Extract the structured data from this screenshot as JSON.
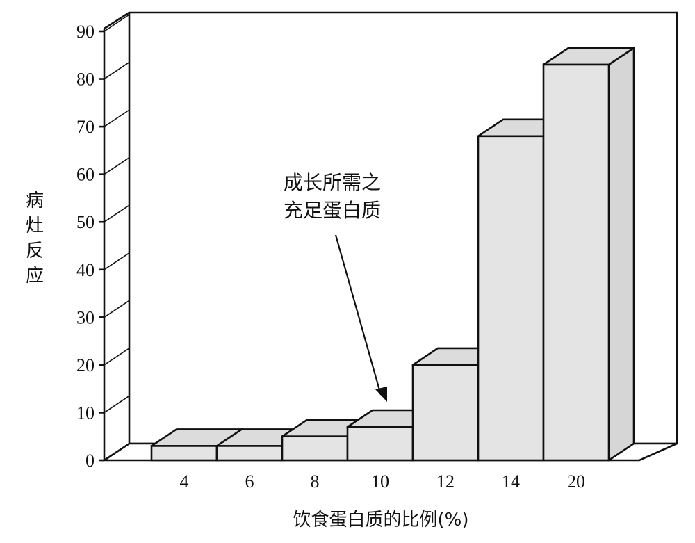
{
  "chart_data": {
    "type": "bar",
    "categories": [
      "4",
      "6",
      "8",
      "10",
      "12",
      "14",
      "20"
    ],
    "values": [
      3,
      3,
      5,
      7,
      20,
      68,
      83
    ],
    "xlabel": "饮食蛋白质的比例(%)",
    "ylabel": "病灶反应",
    "ylim": [
      0,
      90
    ],
    "yticks": [
      "0",
      "10",
      "20",
      "30",
      "40",
      "50",
      "60",
      "70",
      "80",
      "90"
    ],
    "annotation": {
      "lines": [
        "成长所需之",
        "充足蛋白质"
      ],
      "target_category": "10"
    },
    "grid": false,
    "style": "3d-bar",
    "bar_color": "#e4e4e4"
  }
}
